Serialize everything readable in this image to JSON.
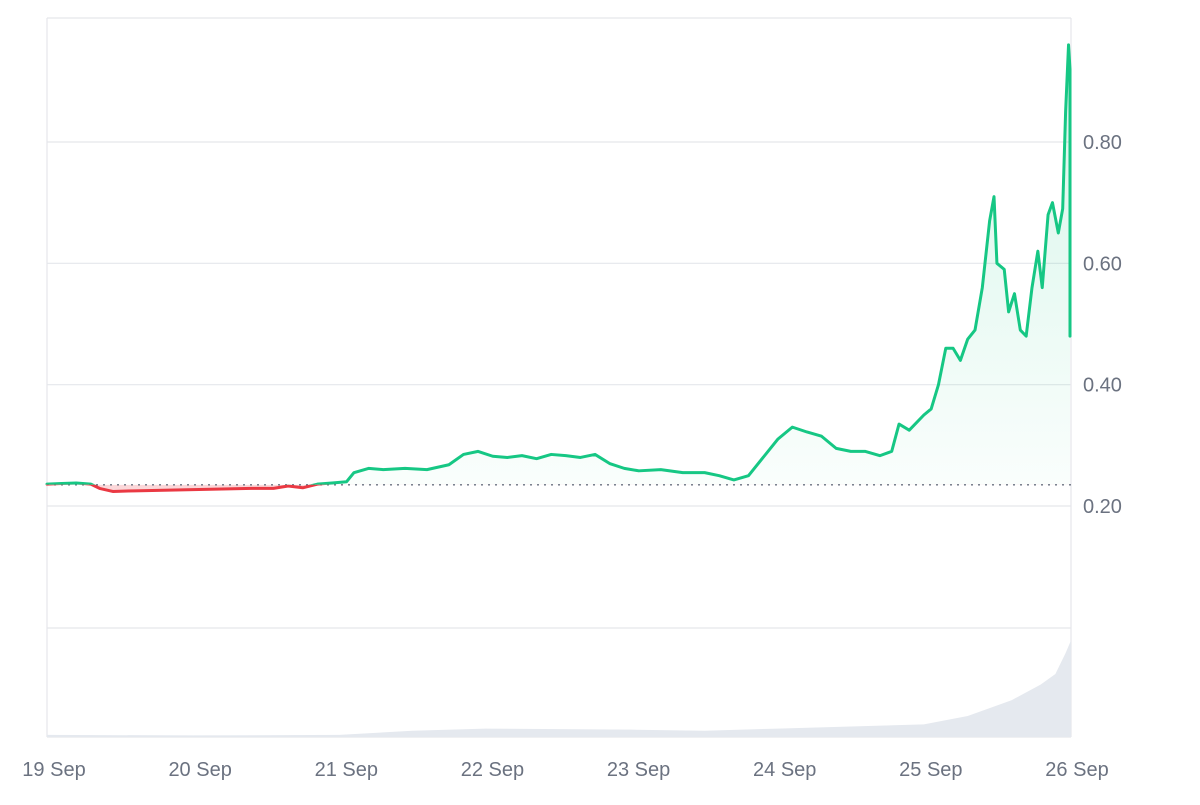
{
  "chart_data": {
    "type": "line",
    "title": "",
    "xlabel": "",
    "ylabel": "",
    "x_tick_labels": [
      "19 Sep",
      "20 Sep",
      "21 Sep",
      "22 Sep",
      "23 Sep",
      "24 Sep",
      "25 Sep",
      "26 Sep"
    ],
    "y_tick_labels": [
      "0.20",
      "0.40",
      "0.60",
      "0.80"
    ],
    "y_ticks": [
      0.2,
      0.4,
      0.6,
      0.8
    ],
    "ylim": [
      0.0,
      1.0
    ],
    "xlim_days": [
      0,
      7
    ],
    "grid": true,
    "legend": "none",
    "baseline_value": 0.235,
    "colors": {
      "up": "#16c784",
      "down": "#ea3943",
      "up_fill": "#16c784",
      "down_fill": "#ea3943",
      "volume": "#e5e9ef",
      "grid": "#e5e7eb",
      "axis_text": "#6b7280"
    },
    "price_series": {
      "x_unit": "days since 19 Sep",
      "points": [
        [
          0.0,
          0.236
        ],
        [
          0.1,
          0.237
        ],
        [
          0.2,
          0.238
        ],
        [
          0.3,
          0.236
        ],
        [
          0.36,
          0.229
        ],
        [
          0.45,
          0.224
        ],
        [
          0.6,
          0.225
        ],
        [
          0.8,
          0.226
        ],
        [
          1.0,
          0.227
        ],
        [
          1.2,
          0.228
        ],
        [
          1.4,
          0.229
        ],
        [
          1.55,
          0.229
        ],
        [
          1.65,
          0.233
        ],
        [
          1.75,
          0.23
        ],
        [
          1.85,
          0.236
        ],
        [
          1.95,
          0.238
        ],
        [
          2.05,
          0.24
        ],
        [
          2.1,
          0.255
        ],
        [
          2.2,
          0.262
        ],
        [
          2.3,
          0.26
        ],
        [
          2.45,
          0.262
        ],
        [
          2.6,
          0.26
        ],
        [
          2.75,
          0.268
        ],
        [
          2.85,
          0.285
        ],
        [
          2.95,
          0.29
        ],
        [
          3.05,
          0.282
        ],
        [
          3.15,
          0.28
        ],
        [
          3.25,
          0.283
        ],
        [
          3.35,
          0.278
        ],
        [
          3.45,
          0.285
        ],
        [
          3.55,
          0.283
        ],
        [
          3.65,
          0.28
        ],
        [
          3.75,
          0.285
        ],
        [
          3.85,
          0.27
        ],
        [
          3.95,
          0.262
        ],
        [
          4.05,
          0.258
        ],
        [
          4.2,
          0.26
        ],
        [
          4.35,
          0.255
        ],
        [
          4.5,
          0.255
        ],
        [
          4.6,
          0.25
        ],
        [
          4.7,
          0.243
        ],
        [
          4.8,
          0.25
        ],
        [
          4.9,
          0.28
        ],
        [
          5.0,
          0.31
        ],
        [
          5.1,
          0.33
        ],
        [
          5.2,
          0.322
        ],
        [
          5.3,
          0.315
        ],
        [
          5.4,
          0.295
        ],
        [
          5.5,
          0.29
        ],
        [
          5.6,
          0.29
        ],
        [
          5.7,
          0.283
        ],
        [
          5.78,
          0.29
        ],
        [
          5.83,
          0.335
        ],
        [
          5.9,
          0.325
        ],
        [
          6.0,
          0.35
        ],
        [
          6.05,
          0.36
        ],
        [
          6.1,
          0.4
        ],
        [
          6.15,
          0.46
        ],
        [
          6.2,
          0.46
        ],
        [
          6.25,
          0.44
        ],
        [
          6.3,
          0.475
        ],
        [
          6.35,
          0.49
        ],
        [
          6.4,
          0.56
        ],
        [
          6.45,
          0.67
        ],
        [
          6.48,
          0.71
        ],
        [
          6.5,
          0.6
        ],
        [
          6.55,
          0.59
        ],
        [
          6.58,
          0.52
        ],
        [
          6.62,
          0.55
        ],
        [
          6.66,
          0.49
        ],
        [
          6.7,
          0.48
        ],
        [
          6.74,
          0.56
        ],
        [
          6.78,
          0.62
        ],
        [
          6.81,
          0.56
        ],
        [
          6.85,
          0.68
        ],
        [
          6.88,
          0.7
        ],
        [
          6.92,
          0.65
        ],
        [
          6.95,
          0.69
        ],
        [
          6.97,
          0.85
        ],
        [
          6.99,
          0.96
        ],
        [
          7.0,
          0.92
        ],
        [
          7.02,
          0.76
        ],
        [
          7.04,
          0.62
        ],
        [
          7.06,
          0.6
        ],
        [
          7.08,
          0.48
        ],
        [
          7.1,
          0.59
        ]
      ]
    },
    "volume_series": {
      "x_unit": "days since 19 Sep",
      "relative_level": [
        [
          0.0,
          0.02
        ],
        [
          1.0,
          0.015
        ],
        [
          2.0,
          0.02
        ],
        [
          2.5,
          0.06
        ],
        [
          3.0,
          0.08
        ],
        [
          4.0,
          0.07
        ],
        [
          4.5,
          0.06
        ],
        [
          5.0,
          0.08
        ],
        [
          5.5,
          0.1
        ],
        [
          6.0,
          0.12
        ],
        [
          6.3,
          0.2
        ],
        [
          6.6,
          0.35
        ],
        [
          6.8,
          0.5
        ],
        [
          6.9,
          0.6
        ],
        [
          6.97,
          0.8
        ],
        [
          7.03,
          0.92
        ],
        [
          7.1,
          1.0
        ]
      ]
    }
  }
}
